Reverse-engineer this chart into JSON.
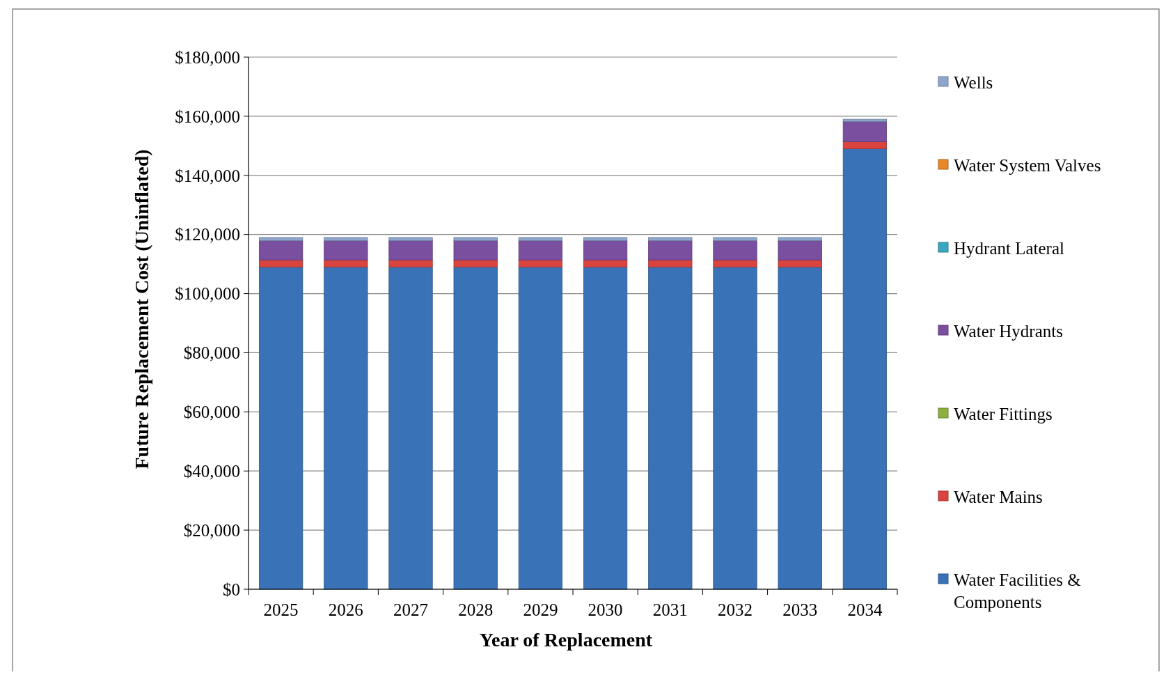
{
  "chart_data": {
    "type": "bar",
    "stacked": true,
    "xlabel": "Year of Replacement",
    "ylabel": "Future Replacement Cost (Uninflated)",
    "categories": [
      "2025",
      "2026",
      "2027",
      "2028",
      "2029",
      "2030",
      "2031",
      "2032",
      "2033",
      "2034"
    ],
    "series": [
      {
        "name": "Water Facilities & Components",
        "color": "#3a72b8",
        "values": [
          109000,
          109000,
          109000,
          109000,
          109000,
          109000,
          109000,
          109000,
          109000,
          149000
        ]
      },
      {
        "name": "Water Mains",
        "color": "#d9443f",
        "values": [
          2400,
          2400,
          2400,
          2400,
          2400,
          2400,
          2400,
          2400,
          2400,
          2400
        ]
      },
      {
        "name": "Water Fittings",
        "color": "#8db040",
        "values": [
          0,
          0,
          0,
          0,
          0,
          0,
          0,
          0,
          0,
          0
        ]
      },
      {
        "name": "Water Hydrants",
        "color": "#7a4fa0",
        "values": [
          6500,
          6500,
          6500,
          6500,
          6500,
          6500,
          6500,
          6500,
          6500,
          6800
        ]
      },
      {
        "name": "Hydrant Lateral",
        "color": "#3aa6c0",
        "values": [
          0,
          0,
          0,
          0,
          0,
          0,
          0,
          0,
          0,
          0
        ]
      },
      {
        "name": "Water System Valves",
        "color": "#e8862a",
        "values": [
          0,
          0,
          0,
          0,
          0,
          0,
          0,
          0,
          0,
          0
        ]
      },
      {
        "name": "Wells",
        "color": "#8fa6cc",
        "values": [
          1100,
          1100,
          1100,
          1100,
          1100,
          1100,
          1100,
          1100,
          1100,
          800
        ]
      }
    ],
    "ylim": [
      0,
      180000
    ],
    "yticks": [
      {
        "value": 0,
        "label": "$0"
      },
      {
        "value": 20000,
        "label": "$20,000"
      },
      {
        "value": 40000,
        "label": "$40,000"
      },
      {
        "value": 60000,
        "label": "$60,000"
      },
      {
        "value": 80000,
        "label": "$80,000"
      },
      {
        "value": 100000,
        "label": "$100,000"
      },
      {
        "value": 120000,
        "label": "$120,000"
      },
      {
        "value": 140000,
        "label": "$140,000"
      },
      {
        "value": 160000,
        "label": "$160,000"
      },
      {
        "value": 180000,
        "label": "$180,000"
      }
    ],
    "grid": "y",
    "legend": "right"
  }
}
